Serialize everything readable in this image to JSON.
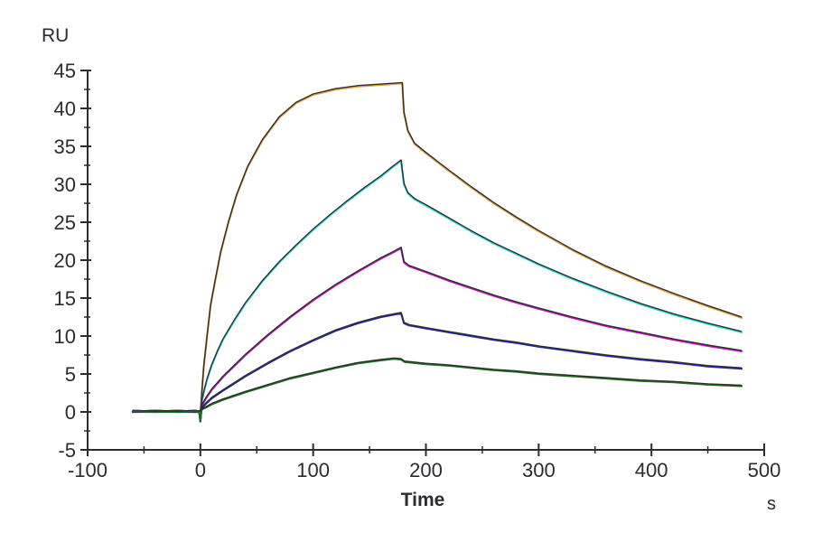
{
  "page": {
    "background": "#ffffff"
  },
  "chart_data": {
    "type": "line",
    "title": "",
    "ylabel": "RU",
    "xlabel": "Time",
    "x_unit": "s",
    "xlim": [
      -100,
      500
    ],
    "ylim": [
      -5,
      45
    ],
    "xticks": [
      -100,
      0,
      100,
      200,
      300,
      400,
      500
    ],
    "yticks": [
      45,
      40,
      35,
      30,
      25,
      20,
      15,
      10,
      5,
      0,
      -5
    ],
    "xticks_minor": [
      -50,
      50,
      150,
      250,
      350,
      450
    ],
    "yticks_minor": [
      42.5,
      37.5,
      32.5,
      27.5,
      22.5,
      17.5,
      12.5,
      7.5,
      2.5,
      -2.5
    ],
    "grid": false,
    "legend": "none",
    "axis_color": "#2d2d2d",
    "text_color": "#2b2b33",
    "fit_color": "#2e2e2e",
    "association_start_s": 0,
    "association_end_s": 180,
    "dissociation_end_s": 480,
    "series": [
      {
        "name": "series-1-orange",
        "color": "#e3a33c",
        "points": [
          [
            -60,
            0.1
          ],
          [
            -40,
            0
          ],
          [
            -20,
            0.1
          ],
          [
            -5,
            0
          ],
          [
            -1,
            0
          ],
          [
            0,
            -1.3
          ],
          [
            1,
            2.0
          ],
          [
            3,
            6.0
          ],
          [
            6,
            10.0
          ],
          [
            9,
            14.0
          ],
          [
            13,
            17.2
          ],
          [
            18,
            21.0
          ],
          [
            25,
            25.0
          ],
          [
            32,
            28.5
          ],
          [
            42,
            32.3
          ],
          [
            55,
            35.8
          ],
          [
            70,
            38.8
          ],
          [
            85,
            40.7
          ],
          [
            100,
            41.8
          ],
          [
            120,
            42.5
          ],
          [
            140,
            42.9
          ],
          [
            160,
            43.1
          ],
          [
            179,
            43.3
          ],
          [
            180.5,
            39.4
          ],
          [
            184,
            37.0
          ],
          [
            190,
            35.3
          ],
          [
            200,
            34.1
          ],
          [
            220,
            31.8
          ],
          [
            240,
            29.6
          ],
          [
            260,
            27.5
          ],
          [
            280,
            25.6
          ],
          [
            300,
            23.8
          ],
          [
            330,
            21.3
          ],
          [
            360,
            19.1
          ],
          [
            390,
            17.2
          ],
          [
            420,
            15.5
          ],
          [
            450,
            13.9
          ],
          [
            480,
            12.4
          ]
        ]
      },
      {
        "name": "series-2-cyan",
        "color": "#2bdede",
        "points": [
          [
            -60,
            0
          ],
          [
            -40,
            0.1
          ],
          [
            -20,
            0
          ],
          [
            -5,
            0.1
          ],
          [
            -1,
            0
          ],
          [
            0,
            -1.3
          ],
          [
            1,
            1.2
          ],
          [
            3,
            2.6
          ],
          [
            6,
            4.3
          ],
          [
            10,
            6.1
          ],
          [
            15,
            7.9
          ],
          [
            20,
            9.5
          ],
          [
            30,
            12.0
          ],
          [
            40,
            14.3
          ],
          [
            55,
            17.2
          ],
          [
            70,
            19.7
          ],
          [
            85,
            21.9
          ],
          [
            100,
            24.0
          ],
          [
            115,
            25.9
          ],
          [
            130,
            27.7
          ],
          [
            145,
            29.4
          ],
          [
            160,
            31.0
          ],
          [
            170,
            32.2
          ],
          [
            178,
            33.1
          ],
          [
            180.5,
            30.0
          ],
          [
            184,
            28.8
          ],
          [
            190,
            28.0
          ],
          [
            200,
            27.2
          ],
          [
            220,
            25.5
          ],
          [
            240,
            23.8
          ],
          [
            260,
            22.2
          ],
          [
            280,
            20.8
          ],
          [
            300,
            19.4
          ],
          [
            330,
            17.5
          ],
          [
            360,
            15.8
          ],
          [
            390,
            14.2
          ],
          [
            420,
            12.8
          ],
          [
            450,
            11.6
          ],
          [
            480,
            10.5
          ]
        ]
      },
      {
        "name": "series-3-magenta",
        "color": "#c215c2",
        "points": [
          [
            -60,
            0
          ],
          [
            -40,
            0
          ],
          [
            -20,
            0.1
          ],
          [
            -5,
            0
          ],
          [
            -1,
            0
          ],
          [
            0,
            -1.2
          ],
          [
            1,
            0.8
          ],
          [
            5,
            1.8
          ],
          [
            10,
            2.9
          ],
          [
            20,
            4.6
          ],
          [
            40,
            7.5
          ],
          [
            60,
            10.1
          ],
          [
            80,
            12.5
          ],
          [
            100,
            14.7
          ],
          [
            120,
            16.7
          ],
          [
            140,
            18.5
          ],
          [
            160,
            20.2
          ],
          [
            172,
            21.1
          ],
          [
            178,
            21.6
          ],
          [
            180.5,
            19.7
          ],
          [
            185,
            19.2
          ],
          [
            200,
            18.4
          ],
          [
            220,
            17.3
          ],
          [
            240,
            16.3
          ],
          [
            260,
            15.3
          ],
          [
            280,
            14.4
          ],
          [
            300,
            13.6
          ],
          [
            330,
            12.4
          ],
          [
            360,
            11.3
          ],
          [
            390,
            10.4
          ],
          [
            420,
            9.5
          ],
          [
            450,
            8.7
          ],
          [
            480,
            8.0
          ]
        ]
      },
      {
        "name": "series-4-blue",
        "color": "#2626a8",
        "points": [
          [
            -60,
            0
          ],
          [
            -40,
            0.1
          ],
          [
            -20,
            0
          ],
          [
            -5,
            0
          ],
          [
            -1,
            0
          ],
          [
            0,
            -1.2
          ],
          [
            1,
            0.5
          ],
          [
            5,
            1.1
          ],
          [
            10,
            1.8
          ],
          [
            20,
            2.8
          ],
          [
            40,
            4.7
          ],
          [
            60,
            6.4
          ],
          [
            80,
            8.0
          ],
          [
            100,
            9.4
          ],
          [
            120,
            10.7
          ],
          [
            140,
            11.7
          ],
          [
            160,
            12.5
          ],
          [
            178,
            13.0
          ],
          [
            180.5,
            11.7
          ],
          [
            185,
            11.4
          ],
          [
            200,
            11.0
          ],
          [
            220,
            10.5
          ],
          [
            240,
            10.0
          ],
          [
            260,
            9.5
          ],
          [
            280,
            9.1
          ],
          [
            300,
            8.6
          ],
          [
            330,
            8.0
          ],
          [
            360,
            7.4
          ],
          [
            390,
            6.9
          ],
          [
            420,
            6.5
          ],
          [
            450,
            6.0
          ],
          [
            480,
            5.7
          ]
        ]
      },
      {
        "name": "series-5-green",
        "color": "#1d6f1d",
        "points": [
          [
            -60,
            0.1
          ],
          [
            -40,
            0
          ],
          [
            -20,
            0
          ],
          [
            -5,
            0.1
          ],
          [
            -1,
            0
          ],
          [
            0,
            -1.1
          ],
          [
            1,
            0.3
          ],
          [
            5,
            0.6
          ],
          [
            10,
            1.0
          ],
          [
            20,
            1.6
          ],
          [
            40,
            2.6
          ],
          [
            60,
            3.5
          ],
          [
            80,
            4.4
          ],
          [
            100,
            5.1
          ],
          [
            120,
            5.8
          ],
          [
            140,
            6.4
          ],
          [
            160,
            6.8
          ],
          [
            172,
            7.0
          ],
          [
            178,
            6.9
          ],
          [
            181,
            6.6
          ],
          [
            200,
            6.3
          ],
          [
            220,
            6.1
          ],
          [
            240,
            5.8
          ],
          [
            260,
            5.5
          ],
          [
            280,
            5.3
          ],
          [
            300,
            5.0
          ],
          [
            330,
            4.7
          ],
          [
            360,
            4.4
          ],
          [
            390,
            4.1
          ],
          [
            420,
            3.9
          ],
          [
            450,
            3.6
          ],
          [
            480,
            3.4
          ]
        ]
      }
    ]
  }
}
